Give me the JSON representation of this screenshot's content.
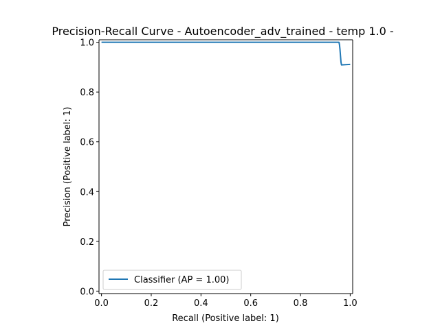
{
  "chart_data": {
    "type": "line",
    "title": "Precision-Recall Curve - Autoencoder_adv_trained - temp 1.0 -",
    "xlabel": "Recall (Positive label: 1)",
    "ylabel": "Precision (Positive label: 1)",
    "xlim": [
      -0.01,
      1.01
    ],
    "ylim": [
      -0.01,
      1.01
    ],
    "x_ticks": [
      {
        "value": 0.0,
        "label": "0.0"
      },
      {
        "value": 0.2,
        "label": "0.2"
      },
      {
        "value": 0.4,
        "label": "0.4"
      },
      {
        "value": 0.6,
        "label": "0.6"
      },
      {
        "value": 0.8,
        "label": "0.8"
      },
      {
        "value": 1.0,
        "label": "1.0"
      }
    ],
    "y_ticks": [
      {
        "value": 0.0,
        "label": "0.0"
      },
      {
        "value": 0.2,
        "label": "0.2"
      },
      {
        "value": 0.4,
        "label": "0.4"
      },
      {
        "value": 0.6,
        "label": "0.6"
      },
      {
        "value": 0.8,
        "label": "0.8"
      },
      {
        "value": 1.0,
        "label": "1.0"
      }
    ],
    "grid": false,
    "legend_position": "lower-left",
    "series": [
      {
        "name": "Classifier (AP = 1.00)",
        "color": "#1f77b4",
        "x": [
          0.0,
          0.955,
          0.957,
          0.959,
          0.961,
          0.963,
          0.965,
          1.0
        ],
        "y": [
          1.0,
          1.0,
          0.99,
          0.97,
          0.945,
          0.92,
          0.909,
          0.911
        ]
      }
    ]
  }
}
